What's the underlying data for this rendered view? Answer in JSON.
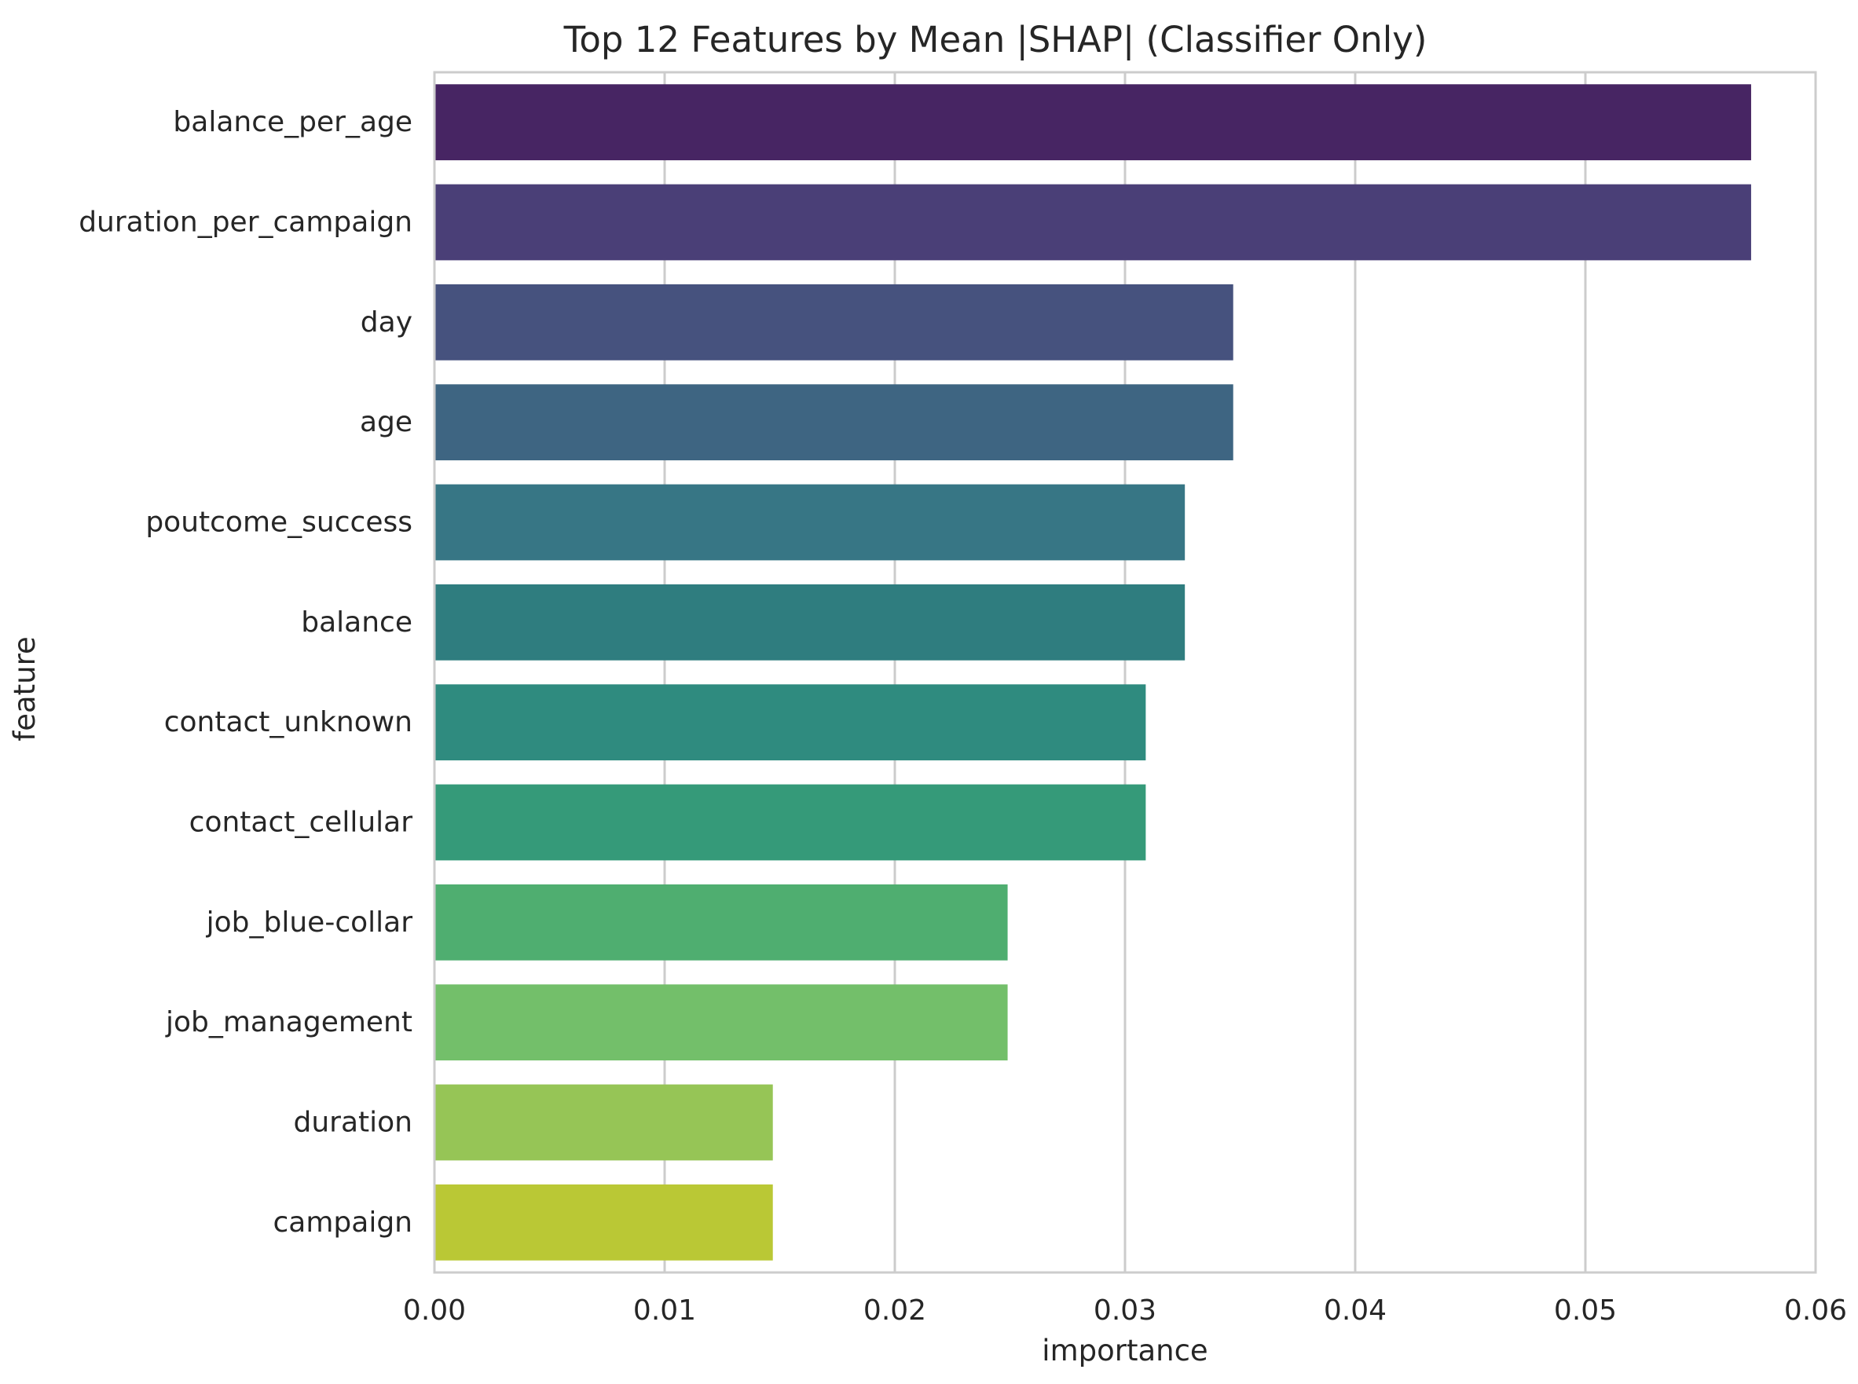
{
  "chart_data": {
    "type": "bar",
    "orientation": "horizontal",
    "title": "Top 12 Features by Mean |SHAP| (Classifier Only)",
    "xlabel": "importance",
    "ylabel": "feature",
    "xlim": [
      0.0,
      0.06
    ],
    "xticks": [
      0.0,
      0.01,
      0.02,
      0.03,
      0.04,
      0.05,
      0.06
    ],
    "xtick_labels": [
      "0.00",
      "0.01",
      "0.02",
      "0.03",
      "0.04",
      "0.05",
      "0.06"
    ],
    "grid": true,
    "colormap": "viridis",
    "categories": [
      "balance_per_age",
      "duration_per_campaign",
      "day",
      "age",
      "poutcome_success",
      "balance",
      "contact_unknown",
      "contact_cellular",
      "job_blue-collar",
      "job_management",
      "duration",
      "campaign"
    ],
    "values": [
      0.0572,
      0.0572,
      0.0347,
      0.0347,
      0.0326,
      0.0326,
      0.0309,
      0.0309,
      0.0249,
      0.0249,
      0.0147,
      0.0147
    ],
    "colors": [
      "#472563",
      "#4a3f77",
      "#46527e",
      "#3e6582",
      "#377685",
      "#2f7d7f",
      "#2f8b7f",
      "#359a79",
      "#4fae70",
      "#73bf6a",
      "#96c556",
      "#bac835"
    ]
  }
}
